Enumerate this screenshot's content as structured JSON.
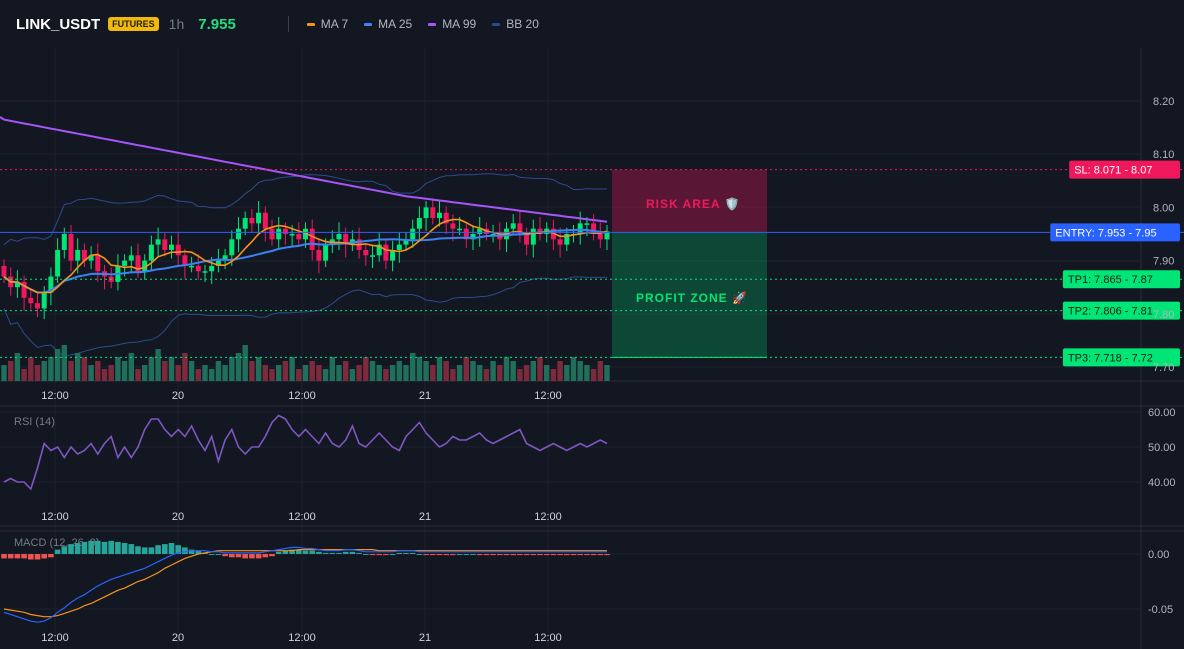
{
  "header": {
    "symbol": "LINK_USDT",
    "badge": "FUTURES",
    "timeframe": "1h",
    "price": "7.955",
    "legend": [
      {
        "name": "MA 7",
        "color": "#f7931a"
      },
      {
        "name": "MA 25",
        "color": "#3b82f6"
      },
      {
        "name": "MA 99",
        "color": "#a855f7"
      },
      {
        "name": "BB 20",
        "color": "#2e4a8f"
      }
    ]
  },
  "levels": {
    "sl": {
      "label": "SL: 8.071 - 8.07",
      "value": 8.071,
      "color": "#f0185c"
    },
    "entry": {
      "label": "ENTRY: 7.953 - 7.95",
      "value": 7.953,
      "color": "#2962ff"
    },
    "tp": [
      {
        "label": "TP1: 7.865 - 7.87",
        "value": 7.865
      },
      {
        "label": "TP2: 7.806 - 7.81",
        "value": 7.806
      },
      {
        "label": "TP3: 7.718 - 7.72",
        "value": 7.718
      }
    ],
    "tp_color": "#00e676"
  },
  "zones": {
    "risk": "RISK AREA 🛡️",
    "profit": "PROFIT ZONE 🚀"
  },
  "chart_data": [
    {
      "type": "candlestick",
      "ylim": [
        7.7,
        8.25
      ],
      "y_ticks": [
        "8.20",
        "8.10",
        "8.00",
        "7.90",
        "7.80",
        "7.70"
      ],
      "x_ticks": [
        "12:00",
        "20",
        "12:00",
        "21",
        "12:00"
      ],
      "close": [
        7.87,
        7.85,
        7.86,
        7.83,
        7.82,
        7.81,
        7.84,
        7.87,
        7.92,
        7.95,
        7.9,
        7.92,
        7.9,
        7.91,
        7.88,
        7.87,
        7.86,
        7.89,
        7.9,
        7.91,
        7.88,
        7.9,
        7.93,
        7.94,
        7.92,
        7.93,
        7.91,
        7.89,
        7.89,
        7.88,
        7.88,
        7.89,
        7.9,
        7.91,
        7.94,
        7.96,
        7.98,
        7.97,
        7.99,
        7.96,
        7.94,
        7.96,
        7.95,
        7.95,
        7.94,
        7.96,
        7.92,
        7.9,
        7.93,
        7.94,
        7.95,
        7.93,
        7.94,
        7.92,
        7.91,
        7.91,
        7.93,
        7.9,
        7.92,
        7.93,
        7.94,
        7.96,
        7.98,
        8.0,
        7.98,
        7.99,
        7.97,
        7.96,
        7.96,
        7.94,
        7.95,
        7.96,
        7.95,
        7.95,
        7.94,
        7.96,
        7.97,
        7.95,
        7.93,
        7.96,
        7.95,
        7.96,
        7.94,
        7.93,
        7.95,
        7.95,
        7.97,
        7.97,
        7.95,
        7.94,
        7.955
      ]
    },
    {
      "type": "bar",
      "name": "volume",
      "values": [
        1.3,
        1.4,
        1.6,
        1.2,
        1.5,
        1.3,
        1.4,
        1.5,
        1.7,
        1.8,
        1.4,
        1.6,
        1.5,
        1.3,
        1.4,
        1.2,
        1.3,
        1.5,
        1.4,
        1.6,
        1.2,
        1.3,
        1.5,
        1.7,
        1.4,
        1.5,
        1.3,
        1.6,
        1.4,
        1.2,
        1.3,
        1.2,
        1.4,
        1.3,
        1.5,
        1.6,
        1.8,
        1.4,
        1.5,
        1.3,
        1.2,
        1.3,
        1.4,
        1.5,
        1.2,
        1.3,
        1.4,
        1.3,
        1.2,
        1.5,
        1.3,
        1.4,
        1.2,
        1.3,
        1.5,
        1.4,
        1.3,
        1.2,
        1.3,
        1.4,
        1.3,
        1.6,
        1.5,
        1.4,
        1.3,
        1.5,
        1.4,
        1.2,
        1.3,
        1.5,
        1.4,
        1.3,
        1.2,
        1.4,
        1.3,
        1.5,
        1.4,
        1.2,
        1.3,
        1.4,
        1.5,
        1.3,
        1.2,
        1.4,
        1.3,
        1.5,
        1.4,
        1.3,
        1.2,
        1.4,
        1.3
      ]
    },
    {
      "type": "line",
      "title": "RSI (14)",
      "ylim": [
        33,
        62
      ],
      "y_ticks": [
        "60.00",
        "50.00",
        "40.00"
      ],
      "x_ticks": [
        "12:00",
        "20",
        "12:00",
        "21",
        "12:00"
      ],
      "values": [
        40,
        41,
        40,
        40,
        38,
        44,
        51,
        49,
        50,
        47,
        50,
        48,
        49,
        51,
        48,
        51,
        53,
        47,
        50,
        47,
        50,
        55,
        58,
        58,
        55,
        53,
        55,
        53,
        56,
        52,
        49,
        53,
        46,
        52,
        55,
        50,
        48,
        50,
        50,
        53,
        57,
        59,
        58,
        55,
        53,
        55,
        53,
        51,
        54,
        51,
        50,
        52,
        56,
        51,
        50,
        52,
        54,
        52,
        50,
        49,
        53,
        55,
        57,
        54,
        52,
        50,
        51,
        53,
        52,
        52,
        53,
        54,
        52,
        51,
        52,
        53,
        54,
        55,
        51,
        50,
        49,
        50,
        51,
        50,
        49,
        50,
        51,
        50,
        51,
        52,
        51
      ]
    },
    {
      "type": "bar",
      "title": "MACD (12, 26, 9)",
      "ylim": [
        -0.07,
        0.03
      ],
      "y_ticks": [
        "0.00",
        "-0.05"
      ],
      "x_ticks": [
        "12:00",
        "20",
        "12:00",
        "21",
        "12:00"
      ],
      "histogram": [
        -0.004,
        -0.004,
        -0.004,
        -0.004,
        -0.005,
        -0.005,
        -0.004,
        -0.003,
        0.004,
        0.007,
        0.009,
        0.01,
        0.011,
        0.012,
        0.012,
        0.011,
        0.012,
        0.011,
        0.01,
        0.009,
        0.007,
        0.006,
        0.006,
        0.008,
        0.009,
        0.01,
        0.008,
        0.006,
        0.004,
        0.003,
        0.001,
        0.0,
        0.0,
        -0.002,
        -0.003,
        -0.003,
        -0.004,
        -0.004,
        -0.004,
        -0.003,
        -0.002,
        0.002,
        0.003,
        0.004,
        0.004,
        0.003,
        0.003,
        0.002,
        0.001,
        0.001,
        0.001,
        0.002,
        0.002,
        0.001,
        0.0,
        -0.001,
        -0.001,
        -0.001,
        0.0,
        0.001,
        0.001,
        0.001,
        0.0,
        -0.001,
        -0.001,
        -0.001,
        -0.001,
        -0.001,
        0.0,
        0.0,
        0.0,
        -0.001,
        -0.001,
        -0.001,
        -0.001,
        -0.001,
        -0.001,
        -0.001,
        -0.001,
        -0.001,
        -0.001,
        -0.001,
        -0.001,
        -0.001,
        -0.001,
        -0.001,
        -0.001,
        -0.001,
        -0.001,
        -0.001,
        -0.001
      ],
      "macd": [
        -0.053,
        -0.055,
        -0.057,
        -0.059,
        -0.061,
        -0.062,
        -0.061,
        -0.058,
        -0.053,
        -0.049,
        -0.044,
        -0.04,
        -0.037,
        -0.033,
        -0.029,
        -0.026,
        -0.023,
        -0.021,
        -0.019,
        -0.017,
        -0.015,
        -0.013,
        -0.01,
        -0.007,
        -0.004,
        -0.001,
        0.001,
        0.002,
        0.003,
        0.003,
        0.003,
        0.002,
        0.002,
        0.001,
        0.001,
        0.001,
        0.001,
        0.001,
        0.001,
        0.002,
        0.003,
        0.004,
        0.005,
        0.006,
        0.006,
        0.005,
        0.005,
        0.004,
        0.003,
        0.003,
        0.003,
        0.004,
        0.004,
        0.003,
        0.002,
        0.002,
        0.002,
        0.002,
        0.002,
        0.003,
        0.003,
        0.003,
        0.002,
        0.002,
        0.002,
        0.002,
        0.002,
        0.002,
        0.002,
        0.002,
        0.002,
        0.002,
        0.002,
        0.002,
        0.002,
        0.002,
        0.002,
        0.002,
        0.002,
        0.002,
        0.002,
        0.002,
        0.002,
        0.002,
        0.002,
        0.002,
        0.002,
        0.002,
        0.002,
        0.002,
        0.002
      ],
      "signal": [
        -0.05,
        -0.051,
        -0.052,
        -0.053,
        -0.055,
        -0.056,
        -0.057,
        -0.057,
        -0.056,
        -0.054,
        -0.052,
        -0.05,
        -0.047,
        -0.045,
        -0.042,
        -0.039,
        -0.036,
        -0.033,
        -0.031,
        -0.028,
        -0.025,
        -0.023,
        -0.02,
        -0.017,
        -0.013,
        -0.01,
        -0.007,
        -0.004,
        -0.002,
        0.0,
        0.001,
        0.002,
        0.003,
        0.003,
        0.003,
        0.003,
        0.003,
        0.003,
        0.003,
        0.003,
        0.003,
        0.003,
        0.003,
        0.003,
        0.004,
        0.004,
        0.004,
        0.004,
        0.004,
        0.004,
        0.004,
        0.004,
        0.004,
        0.004,
        0.004,
        0.004,
        0.003,
        0.003,
        0.003,
        0.003,
        0.003,
        0.003,
        0.003,
        0.003,
        0.003,
        0.003,
        0.003,
        0.003,
        0.003,
        0.003,
        0.003,
        0.003,
        0.003,
        0.003,
        0.003,
        0.003,
        0.003,
        0.003,
        0.003,
        0.003,
        0.003,
        0.003,
        0.003,
        0.003,
        0.003,
        0.003,
        0.003,
        0.003,
        0.003,
        0.003,
        0.003
      ]
    }
  ]
}
